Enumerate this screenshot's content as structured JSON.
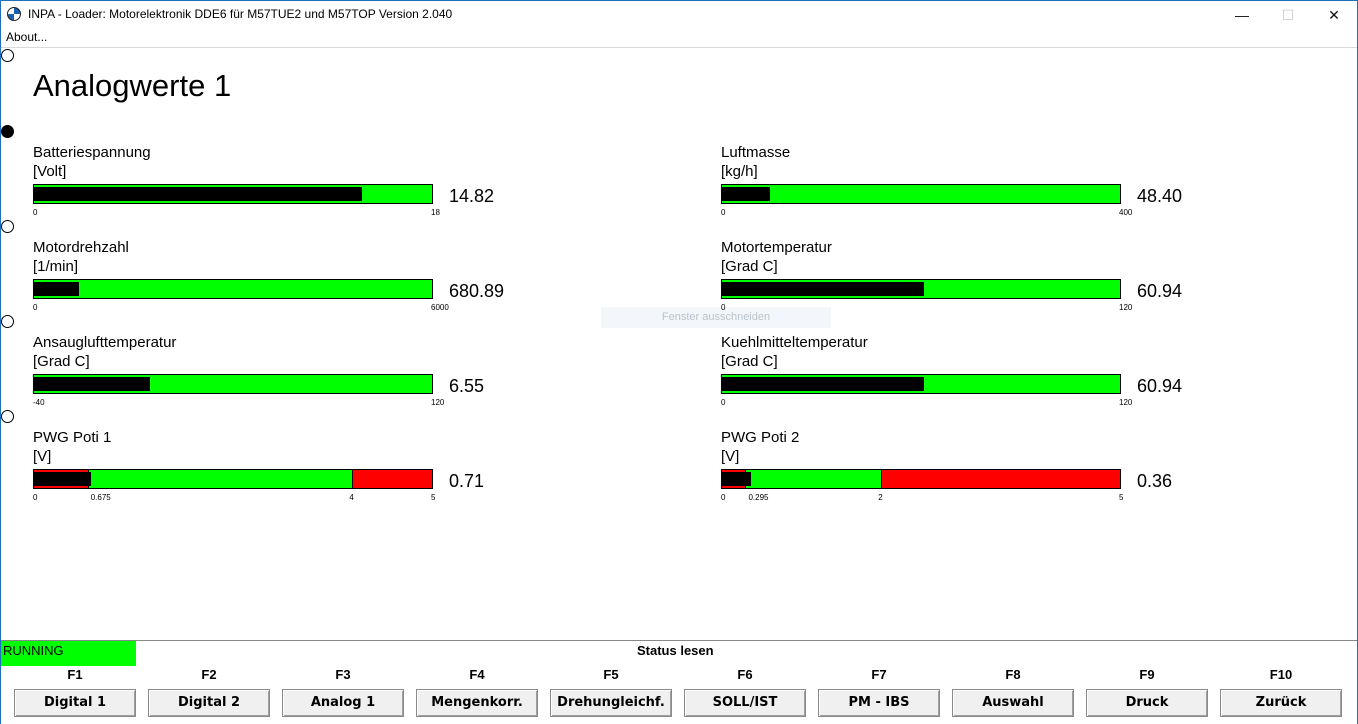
{
  "window": {
    "title": "INPA - Loader:  Motorelektronik DDE6 für M57TUE2 und M57TOP Version 2.040",
    "minimize": "—",
    "maximize": "☐",
    "close": "✕"
  },
  "menu": {
    "about": "About..."
  },
  "screen_title": "Analogwerte 1",
  "ghost_label": "Fenster ausschneiden",
  "gauges": [
    {
      "name": "Batteriespannung",
      "unit": "[Volt]",
      "value": "14.82",
      "min_label": "0",
      "max_label": "18",
      "fill_fraction": 0.823
    },
    {
      "name": "Luftmasse",
      "unit": "[kg/h]",
      "value": "48.40",
      "min_label": "0",
      "max_label": "400",
      "fill_fraction": 0.121
    },
    {
      "name": "Motordrehzahl",
      "unit": "[1/min]",
      "value": "680.89",
      "min_label": "0",
      "max_label": "6000",
      "fill_fraction": 0.113
    },
    {
      "name": "Motortemperatur",
      "unit": "[Grad C]",
      "value": "60.94",
      "min_label": "0",
      "max_label": "120",
      "fill_fraction": 0.508
    },
    {
      "name": "Ansauglufttemperatur",
      "unit": "[Grad C]",
      "value": "6.55",
      "min_label": "-40",
      "max_label": "120",
      "fill_fraction": 0.291
    },
    {
      "name": "Kuehlmitteltemperatur",
      "unit": "[Grad C]",
      "value": "60.94",
      "min_label": "0",
      "max_label": "120",
      "fill_fraction": 0.508
    },
    {
      "name": "PWG Poti 1",
      "unit": "[V]",
      "value": "0.71",
      "min_label": "0",
      "max_label": "5",
      "fill_fraction": 0.142,
      "thresholds": [
        {
          "value": 0.675,
          "label": "0.675"
        },
        {
          "value": 4,
          "label": "4"
        }
      ]
    },
    {
      "name": "PWG Poti 2",
      "unit": "[V]",
      "value": "0.36",
      "min_label": "0",
      "max_label": "5",
      "fill_fraction": 0.072,
      "thresholds": [
        {
          "value": 0.295,
          "label": "0.295"
        },
        {
          "value": 2,
          "label": "2"
        }
      ]
    }
  ],
  "status": {
    "running": "RUNNING",
    "text": "Status lesen"
  },
  "function_keys": [
    {
      "key": "F1",
      "label": "Digital 1"
    },
    {
      "key": "F2",
      "label": "Digital 2"
    },
    {
      "key": "F3",
      "label": "Analog 1"
    },
    {
      "key": "F4",
      "label": "Mengenkorr."
    },
    {
      "key": "F5",
      "label": "Drehungleichf."
    },
    {
      "key": "F6",
      "label": "SOLL/IST"
    },
    {
      "key": "F7",
      "label": "PM - IBS"
    },
    {
      "key": "F8",
      "label": "Auswahl"
    },
    {
      "key": "F9",
      "label": "Druck"
    },
    {
      "key": "F10",
      "label": "Zurück"
    }
  ],
  "colors": {
    "ok": "#00ff00",
    "warn": "#ff0000",
    "fill": "#000000",
    "accent": "#1e6fbf"
  }
}
